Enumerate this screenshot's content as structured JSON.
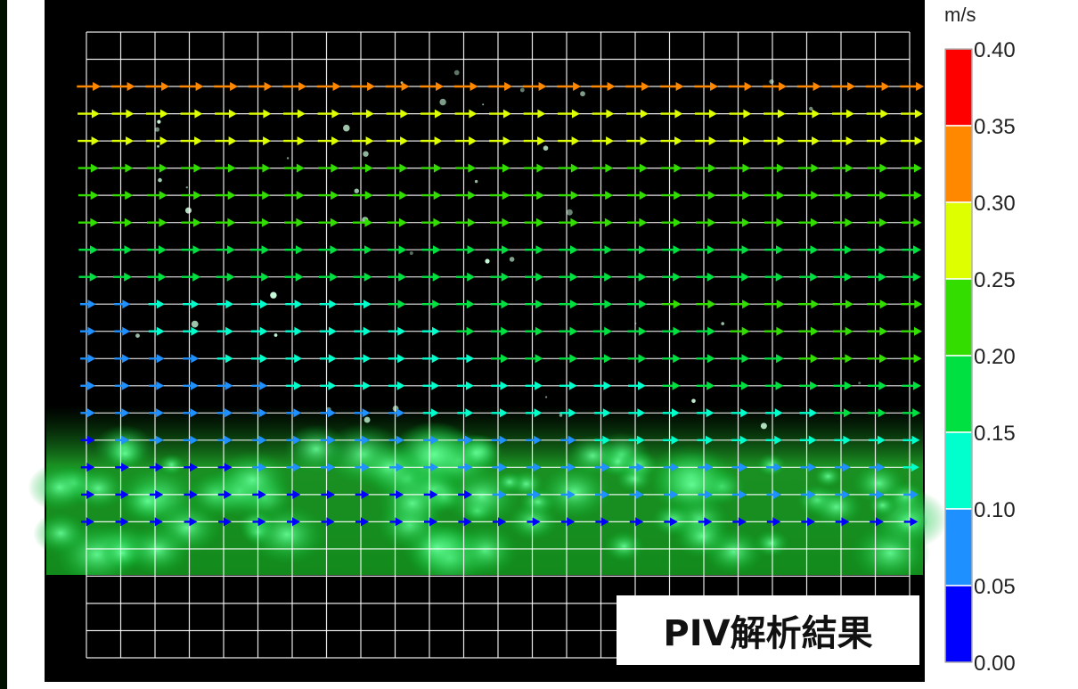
{
  "chart_data": {
    "type": "vector-field",
    "title": "",
    "caption": "PIV解析結果",
    "colorbar": {
      "unit": "m/s",
      "ticks": [
        "0.00",
        "0.05",
        "0.10",
        "0.15",
        "0.20",
        "0.25",
        "0.30",
        "0.35",
        "0.40"
      ],
      "bins": [
        {
          "range": [
            0.0,
            0.05
          ],
          "color": "#0000ff"
        },
        {
          "range": [
            0.05,
            0.1
          ],
          "color": "#1e90ff"
        },
        {
          "range": [
            0.1,
            0.15
          ],
          "color": "#00ffcc"
        },
        {
          "range": [
            0.15,
            0.2
          ],
          "color": "#00e040"
        },
        {
          "range": [
            0.2,
            0.25
          ],
          "color": "#33dd00"
        },
        {
          "range": [
            0.25,
            0.3
          ],
          "color": "#ddff00"
        },
        {
          "range": [
            0.3,
            0.35
          ],
          "color": "#ff8800"
        },
        {
          "range": [
            0.35,
            0.4
          ],
          "color": "#ff0000"
        }
      ],
      "range": [
        0.0,
        0.4
      ]
    },
    "flow_direction": "left-to-right",
    "grid_columns": 24,
    "grid_rows": 23,
    "row_speeds_m_per_s": [
      0.32,
      0.27,
      0.26,
      0.23,
      0.22,
      0.21,
      0.19,
      0.18,
      0.17,
      0.16,
      0.15,
      0.13,
      0.11,
      0.09,
      0.07,
      0.05,
      0.03
    ],
    "grid": true
  }
}
